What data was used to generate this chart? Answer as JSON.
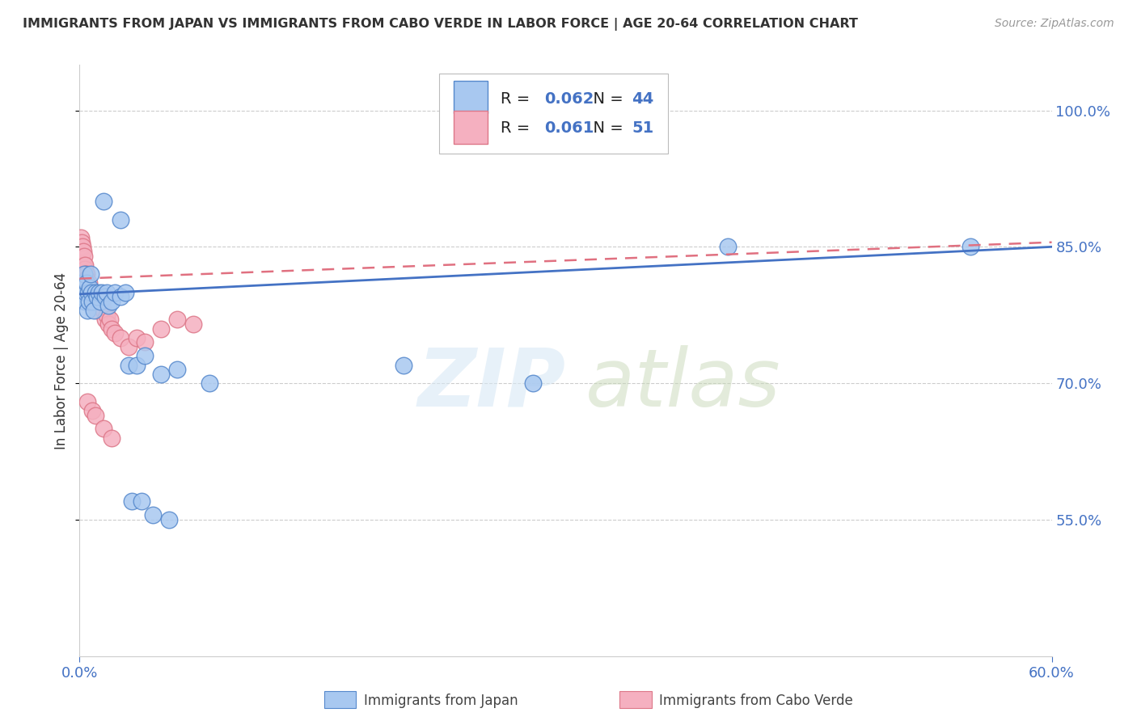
{
  "title": "IMMIGRANTS FROM JAPAN VS IMMIGRANTS FROM CABO VERDE IN LABOR FORCE | AGE 20-64 CORRELATION CHART",
  "source": "Source: ZipAtlas.com",
  "ylabel": "In Labor Force | Age 20-64",
  "xlim": [
    0.0,
    60.0
  ],
  "ylim": [
    40.0,
    105.0
  ],
  "yticks": [
    55.0,
    70.0,
    85.0,
    100.0
  ],
  "japan_color": "#a8c8f0",
  "japan_edge": "#5588cc",
  "cabo_color": "#f5b0c0",
  "cabo_edge": "#dd7788",
  "japan_R": "0.062",
  "japan_N": "44",
  "cabo_R": "0.061",
  "cabo_N": "51",
  "japan_line_color": "#4472c4",
  "cabo_line_color": "#e07080",
  "background_color": "#ffffff",
  "grid_color": "#cccccc",
  "japan_line_y0": 79.8,
  "japan_line_y1": 85.0,
  "cabo_line_y0": 81.5,
  "cabo_line_y1": 85.5,
  "japan_x": [
    1.5,
    2.5,
    0.1,
    0.15,
    0.2,
    0.25,
    0.3,
    0.35,
    0.4,
    0.45,
    0.5,
    0.55,
    0.6,
    0.65,
    0.7,
    0.75,
    0.8,
    0.9,
    1.0,
    1.1,
    1.2,
    1.3,
    1.4,
    1.6,
    1.7,
    1.8,
    2.0,
    2.2,
    2.5,
    2.8,
    3.0,
    3.5,
    4.0,
    5.0,
    6.0,
    8.0,
    3.2,
    3.8,
    4.5,
    5.5,
    40.0,
    55.0,
    20.0,
    28.0
  ],
  "japan_y": [
    90.0,
    88.0,
    80.0,
    79.5,
    81.0,
    80.5,
    82.0,
    79.0,
    80.0,
    81.0,
    78.0,
    80.0,
    79.0,
    80.5,
    82.0,
    80.0,
    79.0,
    78.0,
    80.0,
    79.5,
    80.0,
    79.0,
    80.0,
    79.5,
    80.0,
    78.5,
    79.0,
    80.0,
    79.5,
    80.0,
    72.0,
    72.0,
    73.0,
    71.0,
    71.5,
    70.0,
    57.0,
    57.0,
    55.5,
    55.0,
    85.0,
    85.0,
    72.0,
    70.0
  ],
  "cabo_x": [
    0.05,
    0.08,
    0.1,
    0.12,
    0.15,
    0.18,
    0.2,
    0.22,
    0.25,
    0.28,
    0.3,
    0.32,
    0.35,
    0.38,
    0.4,
    0.42,
    0.45,
    0.5,
    0.55,
    0.6,
    0.65,
    0.7,
    0.75,
    0.8,
    0.85,
    0.9,
    0.95,
    1.0,
    1.1,
    1.2,
    1.3,
    1.4,
    1.5,
    1.6,
    1.7,
    1.8,
    1.9,
    2.0,
    2.2,
    2.5,
    3.0,
    3.5,
    4.0,
    5.0,
    6.0,
    7.0,
    0.5,
    0.8,
    1.0,
    1.5,
    2.0
  ],
  "cabo_y": [
    85.0,
    84.0,
    86.0,
    85.5,
    84.0,
    85.0,
    83.0,
    84.5,
    82.0,
    83.0,
    84.0,
    82.5,
    83.0,
    82.0,
    81.0,
    82.0,
    81.5,
    80.0,
    80.5,
    81.0,
    79.5,
    80.0,
    79.0,
    79.5,
    80.0,
    79.0,
    78.5,
    79.0,
    78.0,
    79.0,
    78.5,
    79.0,
    78.0,
    77.0,
    77.5,
    76.5,
    77.0,
    76.0,
    75.5,
    75.0,
    74.0,
    75.0,
    74.5,
    76.0,
    77.0,
    76.5,
    68.0,
    67.0,
    66.5,
    65.0,
    64.0
  ]
}
